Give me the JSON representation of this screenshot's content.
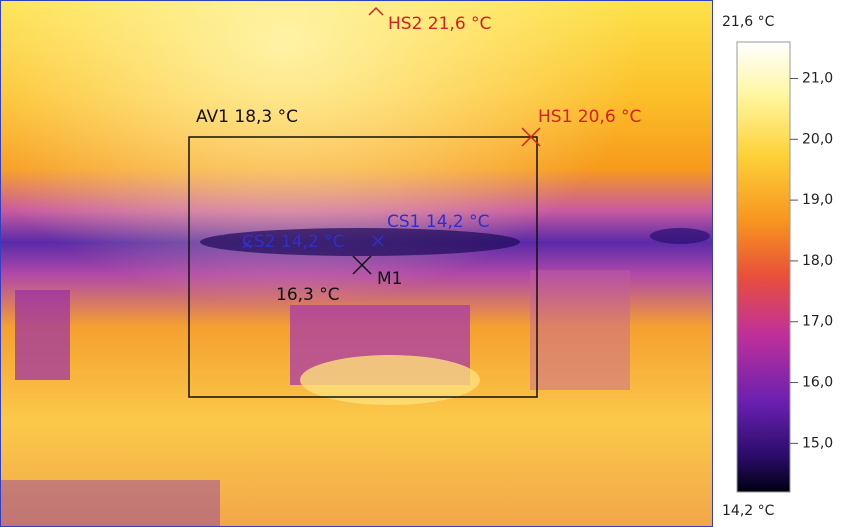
{
  "annotations": {
    "hs2": "HS2 21,6 °C",
    "hs1": "HS1 20,6 °C",
    "av1": "AV1 18,3 °C",
    "cs1": "CS1 14,2 °C",
    "cs2": "CS2 14,2 °C",
    "m1": "M1",
    "m1_value": "16,3 °C"
  },
  "colorbar": {
    "max": {
      "value": 21.6,
      "label": "21,6 °C"
    },
    "min": {
      "value": 14.2,
      "label": "14,2 °C"
    },
    "ticks": [
      {
        "value": 21.0,
        "label": "21,0"
      },
      {
        "value": 20.0,
        "label": "20,0"
      },
      {
        "value": 19.0,
        "label": "19,0"
      },
      {
        "value": 18.0,
        "label": "18,0"
      },
      {
        "value": 17.0,
        "label": "17,0"
      },
      {
        "value": 16.0,
        "label": "16,0"
      },
      {
        "value": 15.0,
        "label": "15,0"
      }
    ]
  }
}
